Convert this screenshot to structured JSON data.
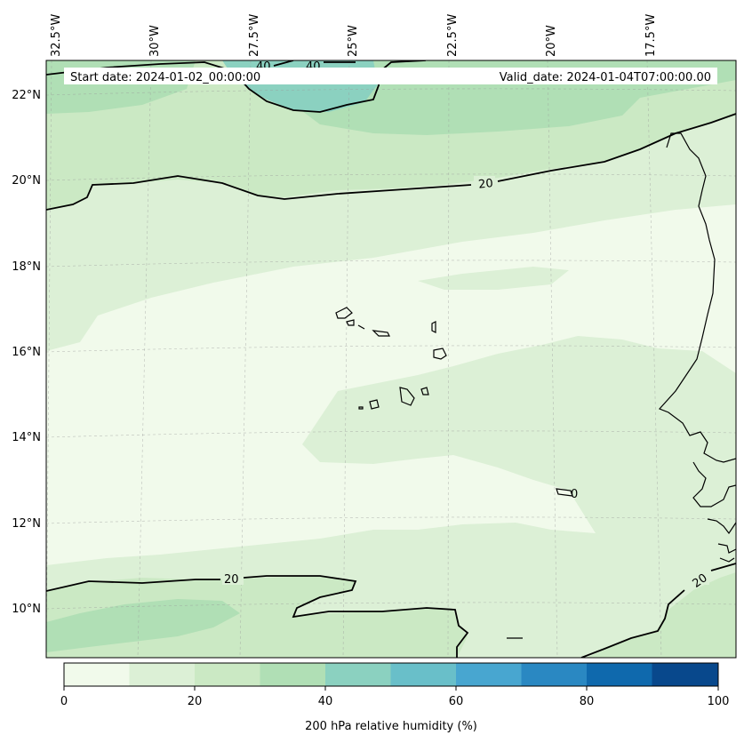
{
  "header": {
    "start_date": "Start date: 2024-01-02_00:00:00",
    "valid_date": "Valid_date: 2024-01-04T07:00:00.00"
  },
  "axes": {
    "lon_labels": [
      "32.5°W",
      "30°W",
      "27.5°W",
      "25°W",
      "22.5°W",
      "20°W",
      "17.5°W"
    ],
    "lat_labels": [
      "22°N",
      "20°N",
      "18°N",
      "16°N",
      "14°N",
      "12°N",
      "10°N"
    ]
  },
  "contour_labels": [
    "40",
    "40",
    "20",
    "20",
    "20",
    "0"
  ],
  "colorbar": {
    "label": "200 hPa relative humidity (%)",
    "ticks": [
      "0",
      "20",
      "40",
      "60",
      "80",
      "100"
    ],
    "colors": [
      "#f1faeb",
      "#dcf0d6",
      "#cbe9c4",
      "#b0dfb5",
      "#8bd1c0",
      "#69bfc9",
      "#48a6d0",
      "#2a88c2",
      "#0f69ad",
      "#08488c"
    ]
  },
  "legend_colors": {
    "ocean_low": "#f1faeb",
    "band_10_20": "#dcf0d6",
    "band_20_30": "#cbe9c4",
    "band_30_40": "#b0dfb5",
    "band_40_50": "#8bd1c0"
  }
}
